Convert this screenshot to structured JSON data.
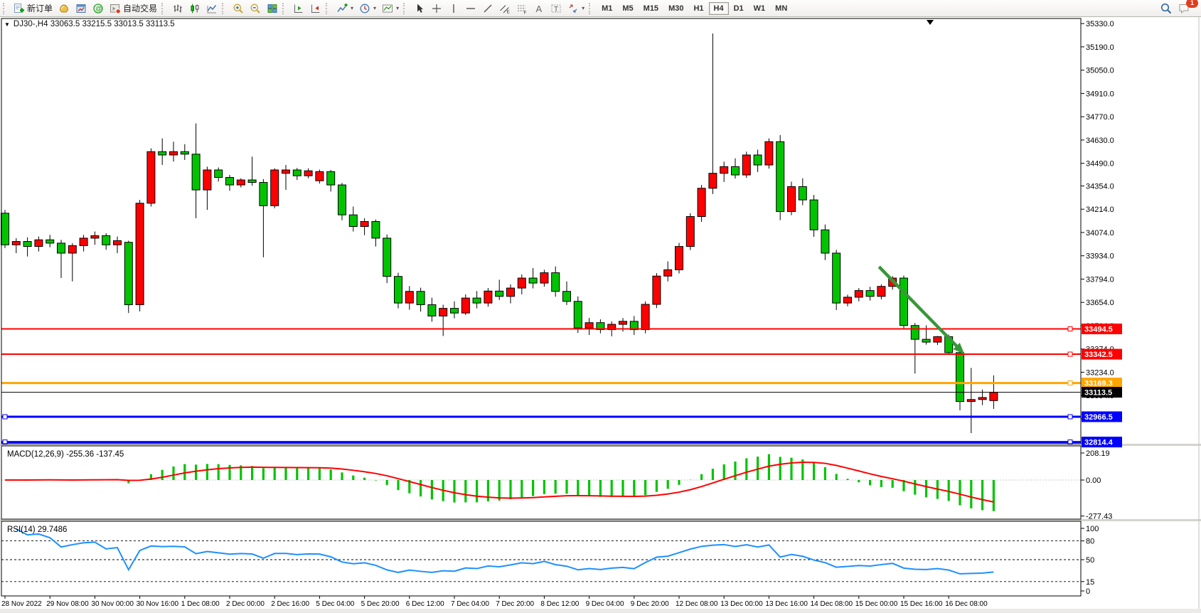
{
  "toolbar": {
    "new_order_label": "新订单",
    "autotrading_label": "自动交易",
    "timeframes": [
      "M1",
      "M5",
      "M15",
      "M30",
      "H1",
      "H4",
      "D1",
      "W1",
      "MN"
    ],
    "active_timeframe": "H4",
    "notification_badge": "1",
    "icons": [
      "new-order",
      "profiles",
      "chart-window",
      "community",
      "autotrading",
      "bar-chart",
      "candlestick-chart",
      "line-chart",
      "zoom-in",
      "zoom-out",
      "tile-windows",
      "chart-shift",
      "auto-scroll",
      "indicators",
      "periods",
      "templates",
      "cursor",
      "crosshair",
      "vertical-line",
      "horizontal-line",
      "trendline",
      "equidistant-channel",
      "fibonacci",
      "text",
      "text-label",
      "arrows",
      "search",
      "notifications"
    ]
  },
  "chart_data": {
    "type": "candlestick",
    "symbol": "DJ30-",
    "timeframe": "H4",
    "title": "DJ30-,H4  33063.5 33215.5 33013.5 33113.5",
    "current_ohlc": {
      "open": 33063.5,
      "high": 33215.5,
      "low": 33013.5,
      "close": 33113.5
    },
    "bull_color": "#ff0000",
    "bear_color": "#00c400",
    "candles": [
      [
        34190,
        34210,
        33980,
        34000
      ],
      [
        34000,
        34040,
        33950,
        34020
      ],
      [
        34020,
        34045,
        33930,
        33990
      ],
      [
        33990,
        34050,
        33960,
        34030
      ],
      [
        34030,
        34060,
        33985,
        34010
      ],
      [
        34010,
        34030,
        33800,
        33950
      ],
      [
        33950,
        34010,
        33780,
        33995
      ],
      [
        33995,
        34060,
        33960,
        34040
      ],
      [
        34040,
        34080,
        34000,
        34055
      ],
      [
        34055,
        34070,
        33970,
        34000
      ],
      [
        34000,
        34050,
        33950,
        34025
      ],
      [
        34015,
        34025,
        33590,
        33640
      ],
      [
        33640,
        34270,
        33600,
        34250
      ],
      [
        34250,
        34580,
        34230,
        34560
      ],
      [
        34560,
        34640,
        34480,
        34540
      ],
      [
        34540,
        34620,
        34500,
        34560
      ],
      [
        34560,
        34605,
        34510,
        34545
      ],
      [
        34545,
        34730,
        34160,
        34330
      ],
      [
        34330,
        34470,
        34210,
        34450
      ],
      [
        34450,
        34465,
        34380,
        34405
      ],
      [
        34405,
        34420,
        34325,
        34360
      ],
      [
        34360,
        34400,
        34345,
        34390
      ],
      [
        34390,
        34530,
        34355,
        34375
      ],
      [
        34375,
        34395,
        33925,
        34235
      ],
      [
        34235,
        34460,
        34220,
        34450
      ],
      [
        34430,
        34480,
        34330,
        34450
      ],
      [
        34450,
        34462,
        34390,
        34415
      ],
      [
        34415,
        34460,
        34400,
        34445
      ],
      [
        34385,
        34452,
        34368,
        34440
      ],
      [
        34440,
        34450,
        34320,
        34360
      ],
      [
        34360,
        34372,
        34148,
        34180
      ],
      [
        34180,
        34230,
        34080,
        34110
      ],
      [
        34110,
        34160,
        34058,
        34140
      ],
      [
        34140,
        34152,
        33990,
        34040
      ],
      [
        34040,
        34062,
        33770,
        33810
      ],
      [
        33810,
        33832,
        33618,
        33650
      ],
      [
        33650,
        33752,
        33610,
        33720
      ],
      [
        33720,
        33742,
        33598,
        33640
      ],
      [
        33640,
        33682,
        33538,
        33572
      ],
      [
        33572,
        33640,
        33452,
        33618
      ],
      [
        33618,
        33660,
        33558,
        33590
      ],
      [
        33590,
        33702,
        33578,
        33680
      ],
      [
        33680,
        33722,
        33618,
        33650
      ],
      [
        33650,
        33740,
        33628,
        33722
      ],
      [
        33722,
        33790,
        33668,
        33690
      ],
      [
        33690,
        33762,
        33648,
        33740
      ],
      [
        33740,
        33822,
        33702,
        33800
      ],
      [
        33800,
        33860,
        33738,
        33770
      ],
      [
        33770,
        33850,
        33748,
        33832
      ],
      [
        33832,
        33870,
        33688,
        33720
      ],
      [
        33720,
        33780,
        33638,
        33660
      ],
      [
        33660,
        33690,
        33470,
        33500
      ],
      [
        33500,
        33560,
        33458,
        33532
      ],
      [
        33532,
        33552,
        33468,
        33490
      ],
      [
        33490,
        33540,
        33450,
        33522
      ],
      [
        33522,
        33560,
        33478,
        33540
      ],
      [
        33540,
        33572,
        33458,
        33490
      ],
      [
        33490,
        33660,
        33468,
        33642
      ],
      [
        33642,
        33830,
        33620,
        33812
      ],
      [
        33812,
        33900,
        33780,
        33850
      ],
      [
        33850,
        34012,
        33828,
        33990
      ],
      [
        33990,
        34190,
        33968,
        34170
      ],
      [
        34170,
        34360,
        34138,
        34340
      ],
      [
        34340,
        35270,
        34305,
        34430
      ],
      [
        34430,
        34500,
        34378,
        34470
      ],
      [
        34470,
        34520,
        34398,
        34420
      ],
      [
        34420,
        34560,
        34402,
        34540
      ],
      [
        34540,
        34572,
        34438,
        34480
      ],
      [
        34480,
        34640,
        34458,
        34620
      ],
      [
        34620,
        34660,
        34148,
        34200
      ],
      [
        34200,
        34380,
        34178,
        34350
      ],
      [
        34350,
        34400,
        34238,
        34270
      ],
      [
        34270,
        34300,
        34048,
        34090
      ],
      [
        34090,
        34122,
        33908,
        33950
      ],
      [
        33950,
        33970,
        33608,
        33650
      ],
      [
        33650,
        33700,
        33630,
        33685
      ],
      [
        33685,
        33740,
        33660,
        33725
      ],
      [
        33725,
        33748,
        33665,
        33690
      ],
      [
        33690,
        33762,
        33672,
        33750
      ],
      [
        33750,
        33812,
        33730,
        33800
      ],
      [
        33800,
        33815,
        33498,
        33515
      ],
      [
        33515,
        33530,
        33226,
        33432
      ],
      [
        33432,
        33516,
        33400,
        33415
      ],
      [
        33415,
        33452,
        33398,
        33448
      ],
      [
        33448,
        33460,
        33338,
        33352
      ],
      [
        33352,
        33390,
        33005,
        33058
      ],
      [
        33058,
        33260,
        32868,
        33070
      ],
      [
        33070,
        33130,
        33036,
        33082
      ],
      [
        33063.5,
        33215.5,
        33013.5,
        33113.5
      ]
    ],
    "time_labels": [
      "28 Nov 2022",
      "29 Nov 08:00",
      "30 Nov 00:00",
      "30 Nov 16:00",
      "1 Dec 08:00",
      "2 Dec 00:00",
      "2 Dec 16:00",
      "5 Dec 04:00",
      "5 Dec 20:00",
      "6 Dec 12:00",
      "7 Dec 04:00",
      "7 Dec 20:00",
      "8 Dec 12:00",
      "9 Dec 04:00",
      "9 Dec 20:00",
      "12 Dec 08:00",
      "13 Dec 00:00",
      "13 Dec 16:00",
      "14 Dec 08:00",
      "15 Dec 00:00",
      "15 Dec 16:00",
      "16 Dec 08:00"
    ],
    "bars_per_time_label": 4,
    "price_ticks": [
      "35330.0",
      "35190.0",
      "35050.0",
      "34910.0",
      "34770.0",
      "34630.0",
      "34490.0",
      "34354.0",
      "34214.0",
      "34074.0",
      "33934.0",
      "33794.0",
      "33654.0",
      "33514.0",
      "33374.0",
      "33234.0",
      "33094.0",
      "32954.0"
    ],
    "price_lines": [
      {
        "price": 33494.5,
        "label": "33494.5",
        "color": "#ff0000",
        "width": 2,
        "handles": "right"
      },
      {
        "price": 33342.5,
        "label": "33342.5",
        "color": "#ff0000",
        "width": 2,
        "handles": "right"
      },
      {
        "price": 33169.3,
        "label": "33169.3",
        "color": "#ffa500",
        "width": 3,
        "handles": "right"
      },
      {
        "price": 33113.5,
        "label": "33113.5",
        "color": "#000000",
        "width": 1,
        "is_current_price": true,
        "handles": "none"
      },
      {
        "price": 32966.5,
        "label": "32966.5",
        "color": "#0000ff",
        "width": 3,
        "handles": "both"
      },
      {
        "price": 32814.4,
        "label": "32814.4",
        "color": "#0000ff",
        "width": 3,
        "handles": "both"
      }
    ],
    "arrow": {
      "from_bar": 77.8,
      "from_price": 33868,
      "to_bar": 85.4,
      "to_price": 33343,
      "color": "#389738"
    },
    "indicators": {
      "macd": {
        "label": "MACD(12,26,9)",
        "values": "-255.36 -137.45",
        "fast": 12,
        "slow": 26,
        "signal": 9,
        "scale_max": "208.19",
        "scale_zero": "0.00",
        "scale_min": "-277.43",
        "histogram_color": "#00c400",
        "signal_color": "#ff0000"
      },
      "rsi": {
        "label": "RSI(14)",
        "value": "29.7486",
        "period": 14,
        "levels": [
          "100",
          "80",
          "50",
          "15",
          "0"
        ],
        "dashed_levels": [
          80,
          50,
          15
        ],
        "line_color": "#1e90ff"
      }
    }
  }
}
